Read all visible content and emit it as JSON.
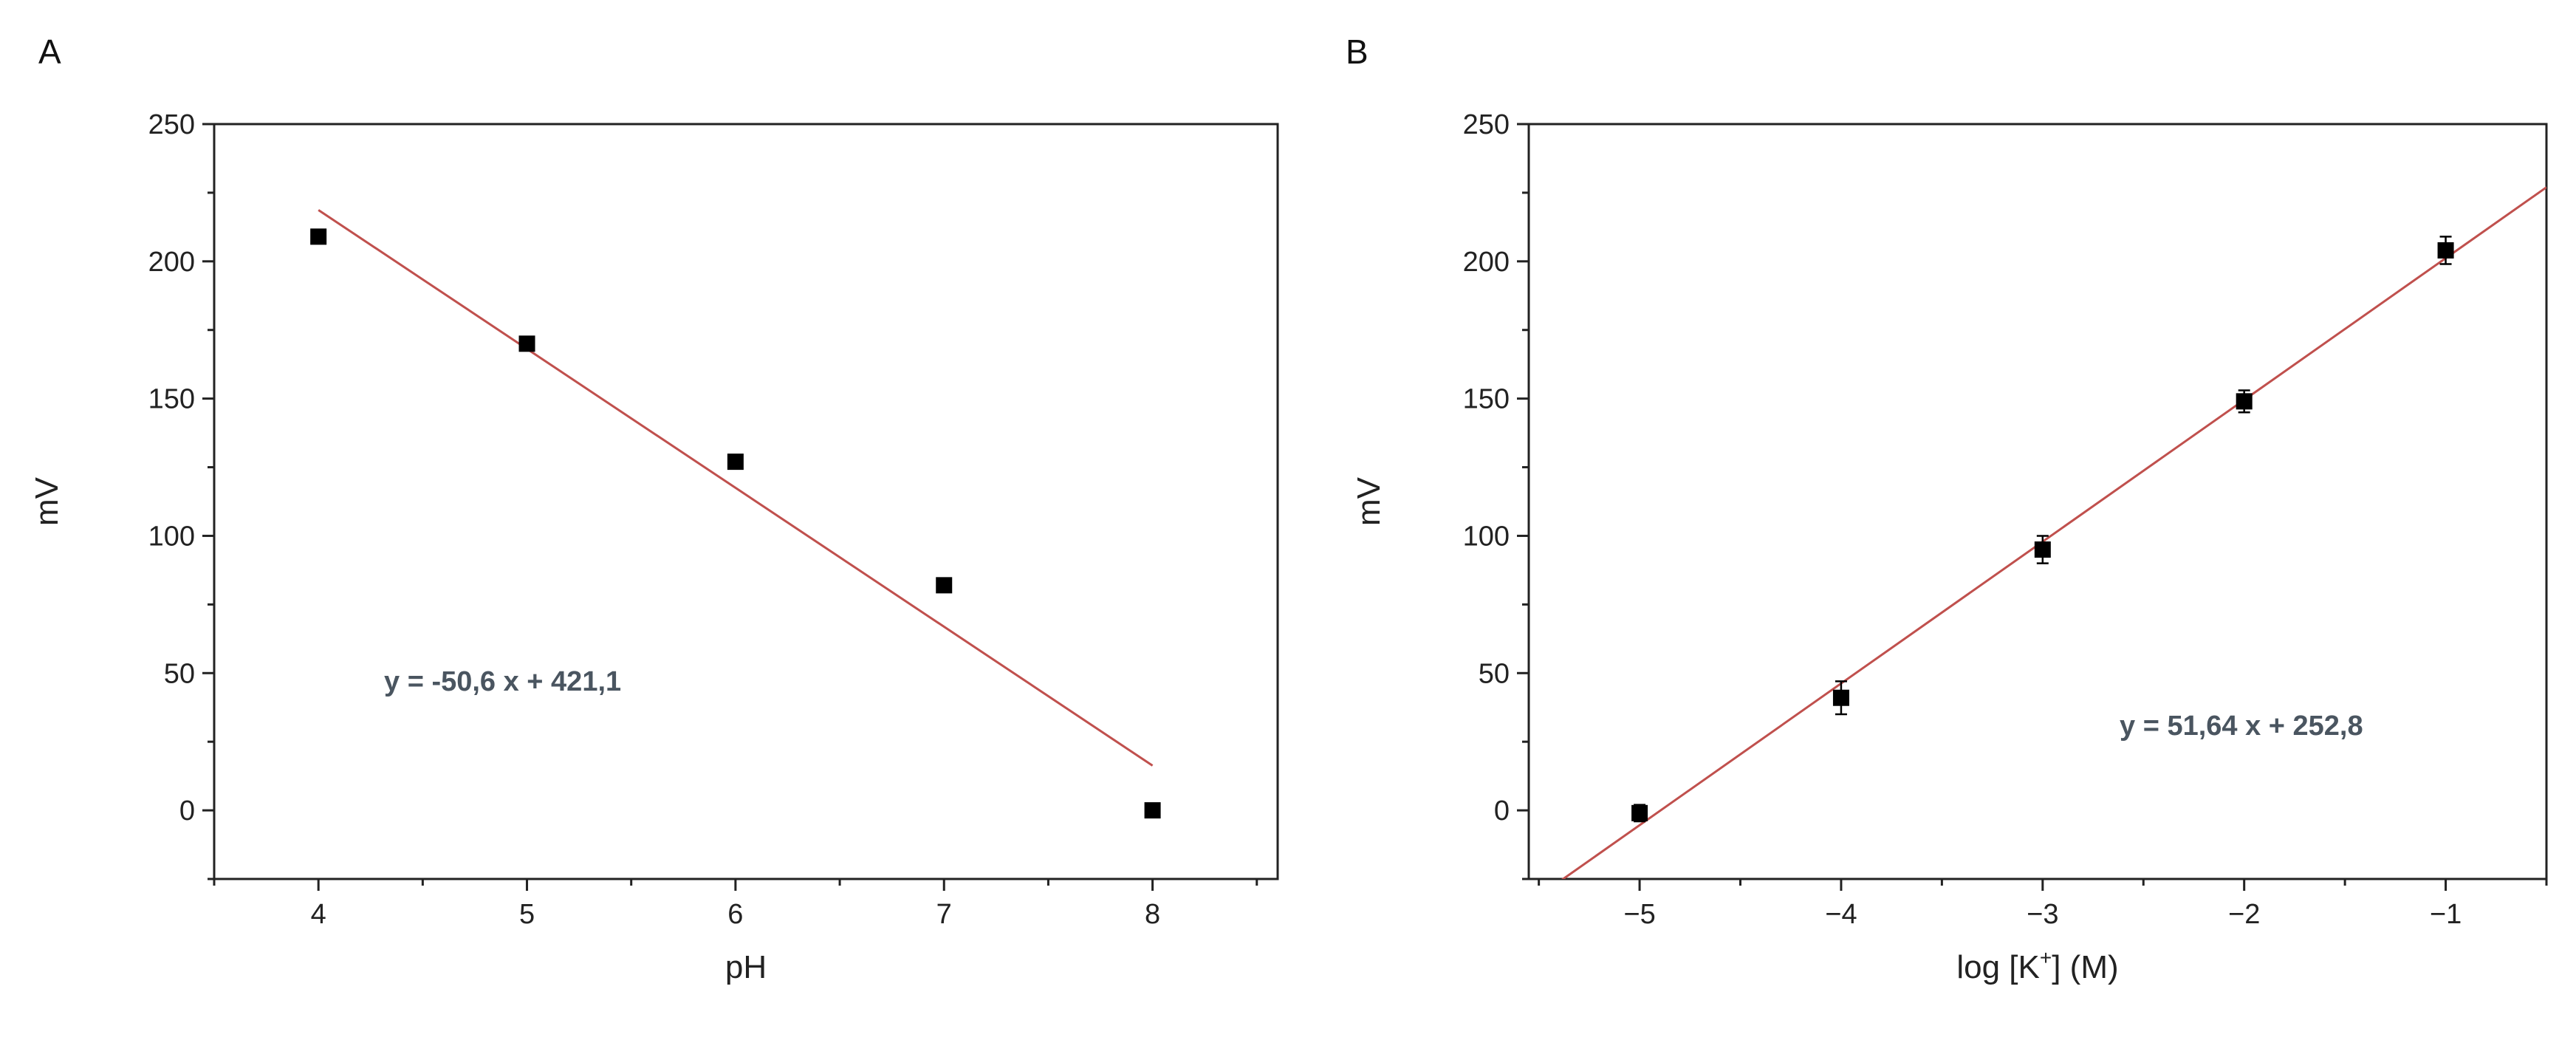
{
  "chart_data": [
    {
      "type": "scatter",
      "panel_label": "A",
      "title": "",
      "xlabel": "pH",
      "ylabel": "mV",
      "xlim": [
        3.5,
        8.6
      ],
      "ylim": [
        -25,
        250
      ],
      "xticks": [
        4,
        5,
        6,
        7,
        8
      ],
      "yticks": [
        0,
        50,
        100,
        150,
        200,
        250
      ],
      "grid": false,
      "series": [
        {
          "x": [
            4,
            5,
            6,
            7,
            8
          ],
          "y": [
            209,
            170,
            127,
            82,
            0
          ],
          "yerr": [
            0,
            0,
            0,
            0,
            0
          ],
          "marker": "square",
          "color": "#000000"
        }
      ],
      "fit": {
        "slope": -50.6,
        "intercept": 421.1,
        "x_range": [
          4,
          8
        ],
        "color": "#c0504d"
      },
      "annotation": "y = -50,6 x + 421,1"
    },
    {
      "type": "scatter",
      "panel_label": "B",
      "title": "",
      "xlabel": "log [K",
      "xlabel_sup": "+",
      "xlabel_suffix": "] (M)",
      "ylabel": "mV",
      "xlim": [
        -5.55,
        -0.5
      ],
      "ylim": [
        -25,
        250
      ],
      "xticks": [
        -5,
        -4,
        -3,
        -2,
        -1
      ],
      "yticks": [
        0,
        50,
        100,
        150,
        200,
        250
      ],
      "grid": false,
      "series": [
        {
          "x": [
            -5,
            -4,
            -3,
            -2,
            -1
          ],
          "y": [
            -1,
            41,
            95,
            149,
            204
          ],
          "yerr": [
            3,
            6,
            5,
            4,
            5
          ],
          "marker": "square",
          "color": "#000000"
        }
      ],
      "fit": {
        "slope": 51.64,
        "intercept": 252.8,
        "x_range": [
          -5.55,
          -0.5
        ],
        "color": "#c0504d"
      },
      "annotation": "y = 51,64 x + 252,8"
    }
  ]
}
